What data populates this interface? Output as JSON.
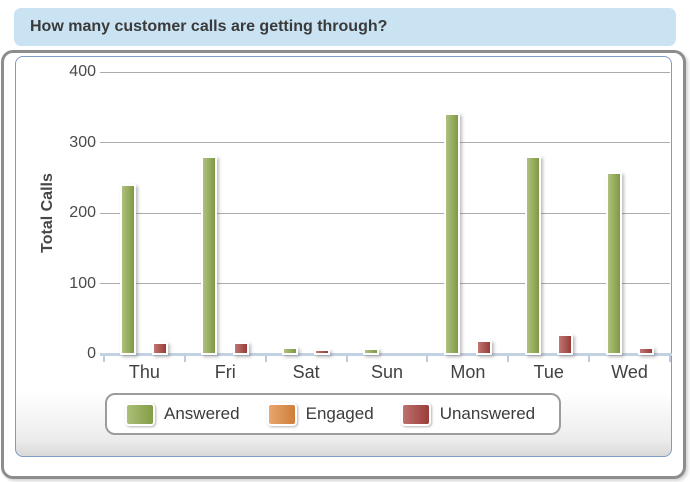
{
  "header": {
    "title": "How many customer calls are getting through?"
  },
  "chart_data": {
    "type": "bar",
    "title": "How many customer calls are getting through?",
    "categories": [
      "Thu",
      "Fri",
      "Sat",
      "Sun",
      "Mon",
      "Tue",
      "Wed"
    ],
    "series": [
      {
        "name": "Answered",
        "color": "#8FAA4C",
        "values": [
          237,
          277,
          6,
          4,
          338,
          276,
          254
        ]
      },
      {
        "name": "Engaged",
        "color": "#E0883E",
        "values": [
          0,
          0,
          0,
          0,
          0,
          0,
          0
        ]
      },
      {
        "name": "Unanswered",
        "color": "#A8423E",
        "values": [
          13,
          13,
          3,
          0,
          15,
          24,
          5
        ]
      }
    ],
    "xlabel": "",
    "ylabel": "Total Calls",
    "yticks": [
      0,
      100,
      200,
      300,
      400
    ],
    "ylim": [
      0,
      400
    ],
    "grid": "horizontal",
    "legend_position": "bottom"
  },
  "style": {
    "header_bg": "#C9E3F3",
    "card_border": "#8D8D8D",
    "panel_border": "#7D9CC6",
    "axis_line": "#C3D2E3",
    "gridline": "#ABABAB"
  }
}
